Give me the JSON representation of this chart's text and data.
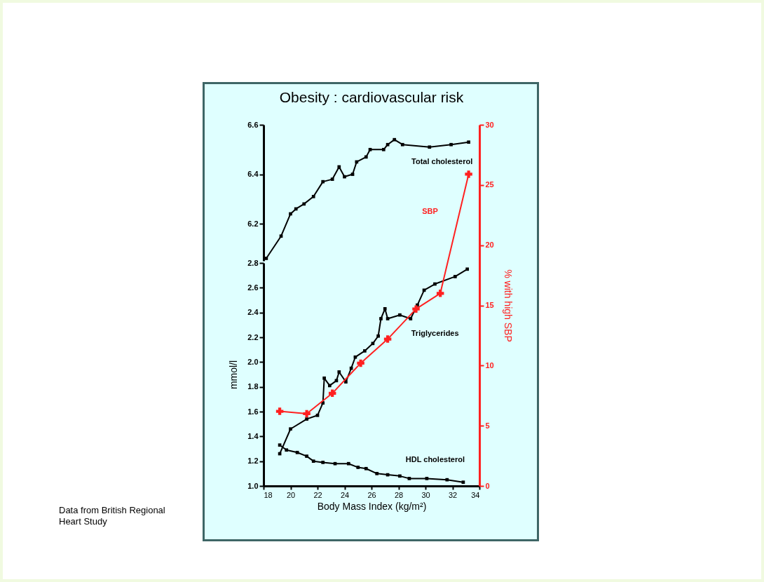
{
  "chart_data": [
    {
      "type": "line",
      "title": "Obesity : cardiovascular risk",
      "annotations": [
        "Data from British Regional Heart Study"
      ],
      "tick_labels": "y",
      "xlim": [
        18,
        34
      ],
      "ylim": [
        6.05,
        6.6
      ],
      "yticks": [
        6.2,
        6.4,
        6.6
      ],
      "series": [
        {
          "name": "Total cholesterol",
          "color": "#000000",
          "marker": "square",
          "x": [
            18.2,
            19.3,
            20.0,
            20.4,
            21.0,
            21.7,
            22.4,
            23.1,
            23.6,
            24.0,
            24.6,
            24.9,
            25.6,
            25.9,
            26.9,
            27.2,
            27.7,
            28.3,
            30.3,
            31.9,
            33.2
          ],
          "values": [
            6.06,
            6.15,
            6.24,
            6.26,
            6.28,
            6.31,
            6.37,
            6.38,
            6.43,
            6.39,
            6.4,
            6.45,
            6.47,
            6.5,
            6.5,
            6.52,
            6.54,
            6.52,
            6.51,
            6.52,
            6.53
          ]
        }
      ]
    },
    {
      "type": "line",
      "xlabel": "Body Mass Index (kg/m²)",
      "ylabel": "mmol/l",
      "xlim": [
        18,
        34
      ],
      "xticks": [
        18,
        20,
        22,
        24,
        26,
        28,
        30,
        32,
        34
      ],
      "ylim": [
        1.0,
        2.8
      ],
      "yticks": [
        {
          "value": 1,
          "label": "1.0"
        },
        1.2,
        1.4,
        1.6,
        1.8,
        {
          "value": 2,
          "label": "2.0"
        },
        2.2,
        2.4,
        2.6,
        2.8
      ],
      "series": [
        {
          "name": "Triglycerides",
          "color": "#000000",
          "marker": "square",
          "x": [
            19.2,
            20.0,
            21.2,
            22.0,
            22.4,
            22.5,
            22.9,
            23.4,
            23.6,
            24.1,
            24.5,
            24.8,
            25.5,
            26.1,
            26.5,
            26.7,
            27.0,
            27.2,
            28.1,
            28.9,
            29.4,
            29.9,
            30.7,
            32.2,
            33.1
          ],
          "values": [
            1.26,
            1.46,
            1.54,
            1.57,
            1.67,
            1.87,
            1.81,
            1.85,
            1.92,
            1.84,
            1.95,
            2.04,
            2.09,
            2.15,
            2.21,
            2.35,
            2.43,
            2.35,
            2.38,
            2.35,
            2.46,
            2.58,
            2.63,
            2.69,
            2.75
          ]
        },
        {
          "name": "HDL cholesterol",
          "color": "#000000",
          "marker": "square",
          "x": [
            19.2,
            19.7,
            20.5,
            21.2,
            21.7,
            22.4,
            23.3,
            24.3,
            25.0,
            25.6,
            26.4,
            27.2,
            28.1,
            28.8,
            30.1,
            31.6,
            32.8
          ],
          "values": [
            1.33,
            1.29,
            1.27,
            1.24,
            1.2,
            1.19,
            1.18,
            1.18,
            1.15,
            1.14,
            1.1,
            1.09,
            1.08,
            1.06,
            1.06,
            1.05,
            1.03
          ]
        }
      ]
    },
    {
      "type": "line",
      "y2label": "% with high SBP",
      "tick_labels": "y",
      "xlim": [
        18,
        34
      ],
      "y2lim": [
        0,
        30
      ],
      "y2ticks": [
        0,
        5,
        10,
        15,
        20,
        25,
        30
      ],
      "series": [
        {
          "name": "SBP",
          "color": "#ff2020",
          "axis": "y2",
          "marker": "cross",
          "x": [
            19.2,
            21.2,
            23.1,
            25.2,
            27.2,
            29.3,
            31.1,
            33.2
          ],
          "values": [
            6.2,
            6.0,
            7.7,
            10.2,
            12.2,
            14.7,
            16.0,
            25.9
          ]
        }
      ]
    }
  ]
}
